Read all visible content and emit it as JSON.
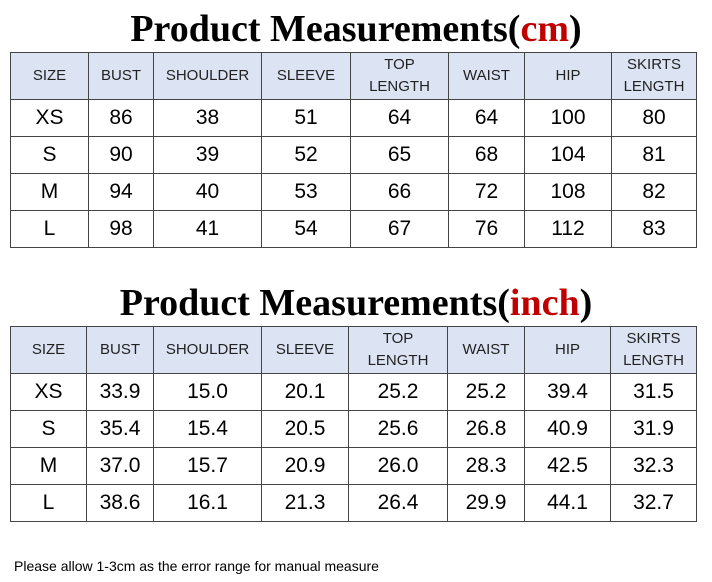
{
  "tables": [
    {
      "title": {
        "text": "Product Measurements(",
        "unit": "cm",
        "close": ")"
      },
      "headers": [
        "SIZE",
        "BUST",
        "SHOULDER",
        "SLEEVE",
        "TOP LENGTH",
        "WAIST",
        "HIP",
        "SKIRTS LENGTH"
      ],
      "rows": [
        [
          "XS",
          "86",
          "38",
          "51",
          "64",
          "64",
          "100",
          "80"
        ],
        [
          "S",
          "90",
          "39",
          "52",
          "65",
          "68",
          "104",
          "81"
        ],
        [
          "M",
          "94",
          "40",
          "53",
          "66",
          "72",
          "108",
          "82"
        ],
        [
          "L",
          "98",
          "41",
          "54",
          "67",
          "76",
          "112",
          "83"
        ]
      ]
    },
    {
      "title": {
        "text": "Product Measurements(",
        "unit": "inch",
        "close": ")"
      },
      "headers": [
        "SIZE",
        "BUST",
        "SHOULDER",
        "SLEEVE",
        "TOP LENGTH",
        "WAIST",
        "HIP",
        "SKIRTS LENGTH"
      ],
      "rows": [
        [
          "XS",
          "33.9",
          "15.0",
          "20.1",
          "25.2",
          "25.2",
          "39.4",
          "31.5"
        ],
        [
          "S",
          "35.4",
          "15.4",
          "20.5",
          "25.6",
          "26.8",
          "40.9",
          "31.9"
        ],
        [
          "M",
          "37.0",
          "15.7",
          "20.9",
          "26.0",
          "28.3",
          "42.5",
          "32.3"
        ],
        [
          "L",
          "38.6",
          "16.1",
          "21.3",
          "26.4",
          "29.9",
          "44.1",
          "32.7"
        ]
      ]
    }
  ],
  "note": "Please allow 1-3cm as the error range for manual measure"
}
